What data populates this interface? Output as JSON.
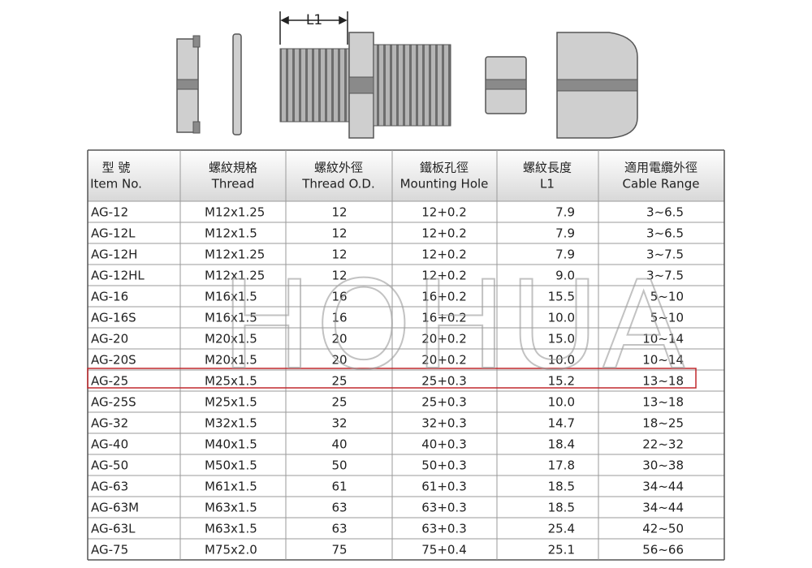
{
  "diagram": {
    "dimension_label": "L1"
  },
  "watermark": "HOHUA",
  "header": {
    "columns": [
      [
        "型 號",
        "Item No."
      ],
      [
        "螺紋規格",
        "Thread"
      ],
      [
        "螺紋外徑",
        "Thread O.D."
      ],
      [
        "鐵板孔徑",
        "Mounting Hole"
      ],
      [
        "螺紋長度",
        "L1"
      ],
      [
        "適用電纜外徑",
        "Cable Range"
      ]
    ]
  },
  "table": {
    "highlight_row": 8,
    "highlight_color": "#c0282d",
    "rows": [
      [
        "AG-12",
        "M12x1.25",
        "12",
        "12+0.2",
        "7.9",
        "3~6.5"
      ],
      [
        "AG-12L",
        "M12x1.5",
        "12",
        "12+0.2",
        "7.9",
        "3~6.5"
      ],
      [
        "AG-12H",
        "M12x1.25",
        "12",
        "12+0.2",
        "7.9",
        "3~7.5"
      ],
      [
        "AG-12HL",
        "M12x1.25",
        "12",
        "12+0.2",
        "9.0",
        "3~7.5"
      ],
      [
        "AG-16",
        "M16x1.5",
        "16",
        "16+0.2",
        "15.5",
        "5~10"
      ],
      [
        "AG-16S",
        "M16x1.5",
        "16",
        "16+0.2",
        "10.0",
        "5~10"
      ],
      [
        "AG-20",
        "M20x1.5",
        "20",
        "20+0.2",
        "15.0",
        "10~14"
      ],
      [
        "AG-20S",
        "M20x1.5",
        "20",
        "20+0.2",
        "10.0",
        "10~14"
      ],
      [
        "AG-25",
        "M25x1.5",
        "25",
        "25+0.3",
        "15.2",
        "13~18"
      ],
      [
        "AG-25S",
        "M25x1.5",
        "25",
        "25+0.3",
        "10.0",
        "13~18"
      ],
      [
        "AG-32",
        "M32x1.5",
        "32",
        "32+0.3",
        "14.7",
        "18~25"
      ],
      [
        "AG-40",
        "M40x1.5",
        "40",
        "40+0.3",
        "18.4",
        "22~32"
      ],
      [
        "AG-50",
        "M50x1.5",
        "50",
        "50+0.3",
        "17.8",
        "30~38"
      ],
      [
        "AG-63",
        "M61x1.5",
        "61",
        "61+0.3",
        "18.5",
        "34~44"
      ],
      [
        "AG-63M",
        "M63x1.5",
        "63",
        "63+0.3",
        "18.5",
        "34~44"
      ],
      [
        "AG-63L",
        "M63x1.5",
        "63",
        "63+0.3",
        "25.4",
        "42~50"
      ],
      [
        "AG-75",
        "M75x2.0",
        "75",
        "75+0.4",
        "25.1",
        "56~66"
      ]
    ]
  }
}
